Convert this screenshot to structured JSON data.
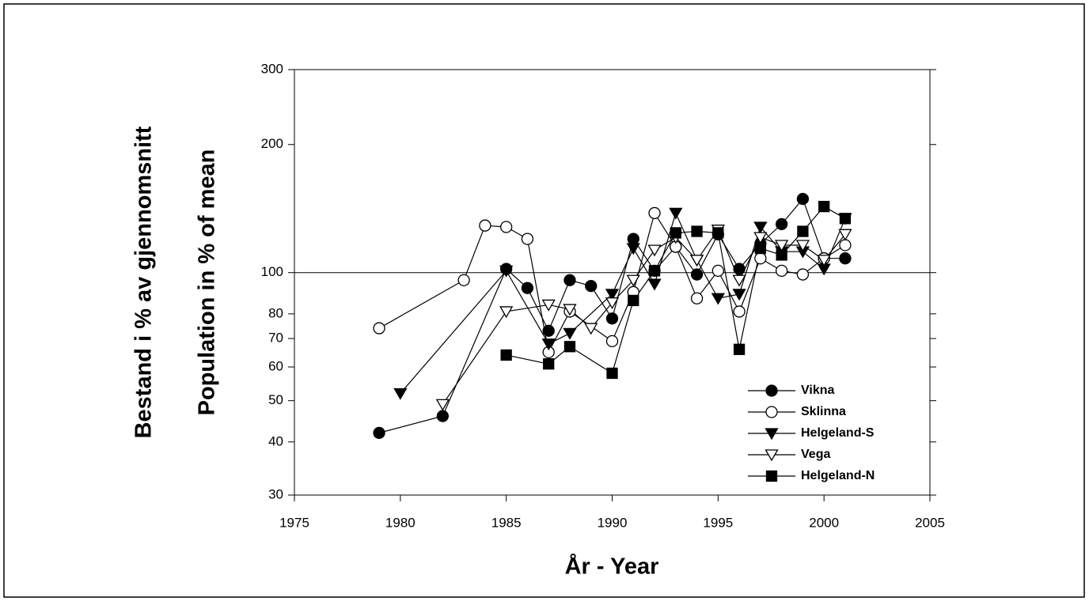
{
  "chart_data": {
    "type": "line",
    "xlabel": "År  -  Year",
    "ylabel": [
      "Bestand i % av gjennomsnitt",
      "Population in % of mean"
    ],
    "yscale": "log",
    "xlim": [
      1975,
      2005
    ],
    "xticks": [
      1975,
      1980,
      1985,
      1990,
      1995,
      2000,
      2005
    ],
    "ylim": [
      30,
      300
    ],
    "yticks": [
      30,
      40,
      50,
      60,
      70,
      80,
      100,
      200,
      300
    ],
    "reference_line": 100,
    "legend": "lower right",
    "series": [
      {
        "name": "Vikna",
        "color": "#000000",
        "marker": "circle",
        "marker_fill": "#000000",
        "x": [
          1979,
          1982,
          1985,
          1986,
          1987,
          1988,
          1989,
          1990,
          1991,
          1992,
          1993,
          1994,
          1995,
          1996,
          1997,
          1998,
          1999,
          2000,
          2001
        ],
        "values": [
          42,
          46,
          102,
          92,
          73,
          96,
          93,
          78,
          120,
          101,
          115,
          99,
          123,
          102,
          117,
          130,
          149,
          108,
          108
        ]
      },
      {
        "name": "Sklinna",
        "color": "#000000",
        "marker": "circle",
        "marker_fill": "#ffffff",
        "x": [
          1979,
          1983,
          1984,
          1985,
          1986,
          1987,
          1988,
          1990,
          1991,
          1992,
          1993,
          1994,
          1995,
          1996,
          1997,
          1998,
          1999,
          2000,
          2001
        ],
        "values": [
          74,
          96,
          129,
          128,
          120,
          65,
          81,
          69,
          90,
          138,
          115,
          87,
          101,
          81,
          108,
          101,
          99,
          108,
          116
        ]
      },
      {
        "name": "Helgeland-S",
        "color": "#000000",
        "marker": "triangle-down",
        "marker_fill": "#000000",
        "x": [
          1980,
          1985,
          1987,
          1988,
          1990,
          1991,
          1992,
          1993,
          1994,
          1995,
          1996,
          1997,
          1998,
          1999,
          2000,
          2001
        ],
        "values": [
          52,
          101,
          68,
          72,
          89,
          114,
          94,
          138,
          107,
          87,
          89,
          128,
          112,
          112,
          102,
          134
        ]
      },
      {
        "name": "Vega",
        "color": "#000000",
        "marker": "triangle-down",
        "marker_fill": "#ffffff",
        "x": [
          1982,
          1985,
          1987,
          1988,
          1989,
          1990,
          1991,
          1992,
          1993,
          1994,
          1995,
          1996,
          1997,
          1998,
          1999,
          2000,
          2001
        ],
        "values": [
          49,
          81,
          84,
          82,
          74,
          85,
          96,
          113,
          121,
          107,
          126,
          96,
          121,
          116,
          116,
          107,
          123
        ]
      },
      {
        "name": "Helgeland-N",
        "color": "#000000",
        "marker": "square",
        "marker_fill": "#000000",
        "x": [
          1985,
          1987,
          1988,
          1990,
          1991,
          1992,
          1993,
          1994,
          1995,
          1996,
          1997,
          1998,
          1999,
          2000,
          2001
        ],
        "values": [
          64,
          61,
          67,
          58,
          86,
          101,
          124,
          125,
          124,
          66,
          114,
          110,
          125,
          143,
          134
        ]
      }
    ]
  }
}
